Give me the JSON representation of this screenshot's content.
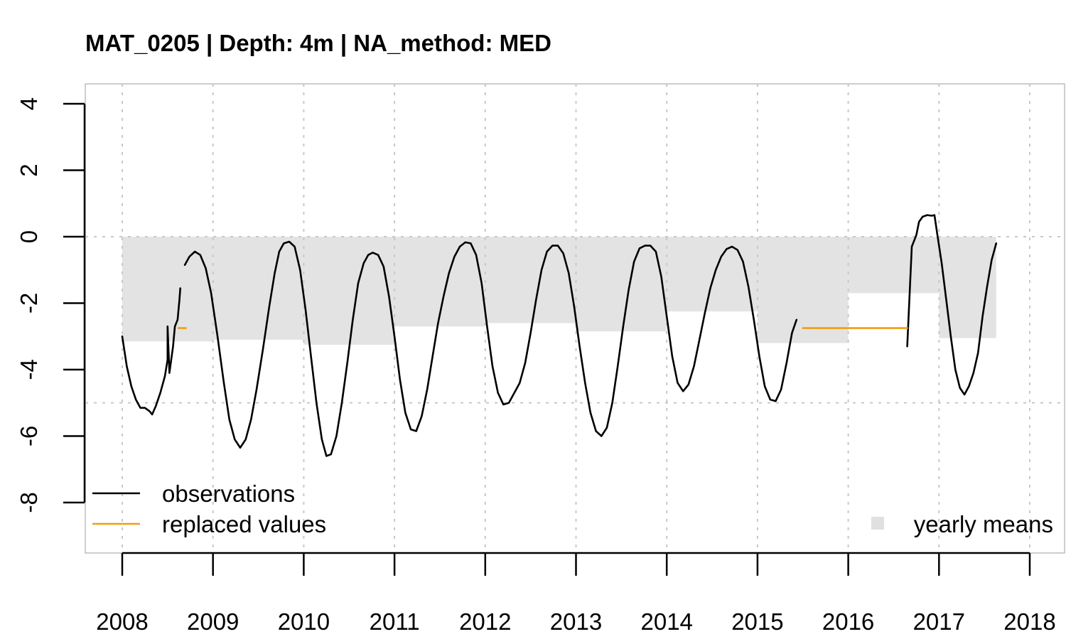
{
  "chart_data": {
    "type": "line",
    "title": "MAT_0205 | Depth: 4m | NA_method: MED",
    "xlabel": "",
    "ylabel": "",
    "xlim": [
      2007.6,
      2018.4
    ],
    "ylim": [
      -9.5,
      4.6
    ],
    "x_ticks": [
      2008,
      2009,
      2010,
      2011,
      2012,
      2013,
      2014,
      2015,
      2016,
      2017,
      2018
    ],
    "x_tick_labels": [
      "2008",
      "2009",
      "2010",
      "2011",
      "2012",
      "2013",
      "2014",
      "2015",
      "2016",
      "2017",
      "2018"
    ],
    "y_ticks": [
      4,
      2,
      0,
      -2,
      -4,
      -6,
      -8
    ],
    "y_tick_labels": [
      "4",
      "2",
      "0",
      "-2",
      "-4",
      "-6",
      "-8"
    ],
    "grid": true,
    "reference_lines_y": [
      0,
      -5
    ],
    "yearly_means": [
      {
        "start": 2008.0,
        "end": 2009.0,
        "value": -3.15
      },
      {
        "start": 2009.0,
        "end": 2010.0,
        "value": -3.1
      },
      {
        "start": 2010.0,
        "end": 2011.0,
        "value": -3.25
      },
      {
        "start": 2011.0,
        "end": 2012.0,
        "value": -2.7
      },
      {
        "start": 2012.0,
        "end": 2013.0,
        "value": -2.6
      },
      {
        "start": 2013.0,
        "end": 2014.0,
        "value": -2.85
      },
      {
        "start": 2014.0,
        "end": 2015.0,
        "value": -2.25
      },
      {
        "start": 2015.0,
        "end": 2016.0,
        "value": -3.2
      },
      {
        "start": 2016.0,
        "end": 2017.0,
        "value": -1.7
      },
      {
        "start": 2017.0,
        "end": 2017.63,
        "value": -3.05
      }
    ],
    "series": [
      {
        "name": "observations",
        "color": "#000000",
        "segments": [
          [
            [
              2008.0,
              -3.0
            ],
            [
              2008.05,
              -3.9
            ],
            [
              2008.1,
              -4.5
            ],
            [
              2008.15,
              -4.9
            ],
            [
              2008.2,
              -5.15
            ],
            [
              2008.25,
              -5.15
            ],
            [
              2008.3,
              -5.25
            ],
            [
              2008.33,
              -5.35
            ],
            [
              2008.37,
              -5.1
            ],
            [
              2008.42,
              -4.7
            ],
            [
              2008.47,
              -4.2
            ],
            [
              2008.5,
              -3.7
            ],
            [
              2008.5,
              -2.7
            ],
            [
              2008.52,
              -4.1
            ],
            [
              2008.56,
              -3.3
            ],
            [
              2008.58,
              -2.7
            ],
            [
              2008.61,
              -2.5
            ],
            [
              2008.63,
              -1.9
            ],
            [
              2008.64,
              -1.55
            ]
          ],
          [
            [
              2008.69,
              -0.85
            ],
            [
              2008.74,
              -0.6
            ],
            [
              2008.8,
              -0.45
            ],
            [
              2008.86,
              -0.55
            ],
            [
              2008.92,
              -0.95
            ],
            [
              2008.98,
              -1.7
            ],
            [
              2009.05,
              -3.0
            ],
            [
              2009.12,
              -4.4
            ],
            [
              2009.18,
              -5.5
            ],
            [
              2009.24,
              -6.1
            ],
            [
              2009.3,
              -6.35
            ],
            [
              2009.36,
              -6.1
            ],
            [
              2009.42,
              -5.5
            ],
            [
              2009.48,
              -4.6
            ],
            [
              2009.55,
              -3.4
            ],
            [
              2009.62,
              -2.1
            ],
            [
              2009.68,
              -1.1
            ],
            [
              2009.73,
              -0.45
            ],
            [
              2009.78,
              -0.2
            ],
            [
              2009.84,
              -0.15
            ],
            [
              2009.9,
              -0.3
            ],
            [
              2009.96,
              -1.0
            ],
            [
              2010.02,
              -2.2
            ],
            [
              2010.08,
              -3.6
            ],
            [
              2010.14,
              -5.0
            ],
            [
              2010.2,
              -6.1
            ],
            [
              2010.25,
              -6.6
            ],
            [
              2010.3,
              -6.55
            ],
            [
              2010.36,
              -6.0
            ],
            [
              2010.42,
              -5.0
            ],
            [
              2010.48,
              -3.8
            ],
            [
              2010.54,
              -2.5
            ],
            [
              2010.6,
              -1.4
            ],
            [
              2010.66,
              -0.8
            ],
            [
              2010.71,
              -0.55
            ],
            [
              2010.76,
              -0.48
            ],
            [
              2010.82,
              -0.55
            ],
            [
              2010.88,
              -0.9
            ],
            [
              2010.94,
              -1.8
            ],
            [
              2011.0,
              -3.0
            ],
            [
              2011.06,
              -4.3
            ],
            [
              2011.12,
              -5.3
            ],
            [
              2011.18,
              -5.8
            ],
            [
              2011.24,
              -5.85
            ],
            [
              2011.3,
              -5.4
            ],
            [
              2011.36,
              -4.6
            ],
            [
              2011.42,
              -3.6
            ],
            [
              2011.48,
              -2.6
            ],
            [
              2011.54,
              -1.8
            ],
            [
              2011.6,
              -1.1
            ],
            [
              2011.66,
              -0.6
            ],
            [
              2011.72,
              -0.3
            ],
            [
              2011.78,
              -0.17
            ],
            [
              2011.84,
              -0.2
            ],
            [
              2011.9,
              -0.55
            ],
            [
              2011.96,
              -1.4
            ],
            [
              2012.02,
              -2.7
            ],
            [
              2012.08,
              -3.9
            ],
            [
              2012.14,
              -4.7
            ],
            [
              2012.2,
              -5.05
            ],
            [
              2012.26,
              -5.0
            ],
            [
              2012.32,
              -4.7
            ],
            [
              2012.38,
              -4.4
            ],
            [
              2012.44,
              -3.8
            ],
            [
              2012.5,
              -2.9
            ],
            [
              2012.56,
              -1.9
            ],
            [
              2012.62,
              -1.0
            ],
            [
              2012.68,
              -0.45
            ],
            [
              2012.74,
              -0.27
            ],
            [
              2012.8,
              -0.27
            ],
            [
              2012.86,
              -0.5
            ],
            [
              2012.92,
              -1.1
            ],
            [
              2012.98,
              -2.1
            ],
            [
              2013.04,
              -3.3
            ],
            [
              2013.1,
              -4.4
            ],
            [
              2013.16,
              -5.3
            ],
            [
              2013.22,
              -5.85
            ],
            [
              2013.28,
              -6.0
            ],
            [
              2013.34,
              -5.75
            ],
            [
              2013.4,
              -5.0
            ],
            [
              2013.46,
              -3.9
            ],
            [
              2013.52,
              -2.7
            ],
            [
              2013.58,
              -1.6
            ],
            [
              2013.64,
              -0.75
            ],
            [
              2013.7,
              -0.35
            ],
            [
              2013.76,
              -0.27
            ],
            [
              2013.82,
              -0.27
            ],
            [
              2013.88,
              -0.45
            ],
            [
              2013.94,
              -1.2
            ],
            [
              2014.0,
              -2.4
            ],
            [
              2014.06,
              -3.6
            ],
            [
              2014.12,
              -4.4
            ],
            [
              2014.18,
              -4.65
            ],
            [
              2014.24,
              -4.45
            ],
            [
              2014.3,
              -3.9
            ],
            [
              2014.36,
              -3.1
            ],
            [
              2014.42,
              -2.3
            ],
            [
              2014.48,
              -1.55
            ],
            [
              2014.54,
              -1.0
            ],
            [
              2014.6,
              -0.6
            ],
            [
              2014.66,
              -0.37
            ],
            [
              2014.72,
              -0.3
            ],
            [
              2014.78,
              -0.4
            ],
            [
              2014.84,
              -0.75
            ],
            [
              2014.9,
              -1.5
            ],
            [
              2014.96,
              -2.5
            ],
            [
              2015.02,
              -3.6
            ],
            [
              2015.08,
              -4.5
            ],
            [
              2015.14,
              -4.9
            ],
            [
              2015.2,
              -4.95
            ],
            [
              2015.26,
              -4.6
            ],
            [
              2015.32,
              -3.8
            ],
            [
              2015.38,
              -2.9
            ],
            [
              2015.43,
              -2.5
            ]
          ],
          [
            [
              2016.65,
              -3.3
            ],
            [
              2016.7,
              -0.3
            ],
            [
              2016.75,
              0.05
            ],
            [
              2016.78,
              0.45
            ],
            [
              2016.82,
              0.6
            ],
            [
              2016.87,
              0.65
            ],
            [
              2016.92,
              0.63
            ],
            [
              2016.95,
              0.65
            ],
            [
              2016.98,
              0.1
            ],
            [
              2017.03,
              -0.8
            ],
            [
              2017.08,
              -1.9
            ],
            [
              2017.13,
              -3.0
            ],
            [
              2017.18,
              -4.0
            ],
            [
              2017.23,
              -4.55
            ],
            [
              2017.28,
              -4.75
            ],
            [
              2017.33,
              -4.5
            ],
            [
              2017.38,
              -4.1
            ],
            [
              2017.43,
              -3.5
            ],
            [
              2017.48,
              -2.4
            ],
            [
              2017.53,
              -1.5
            ],
            [
              2017.58,
              -0.7
            ],
            [
              2017.63,
              -0.2
            ]
          ]
        ]
      },
      {
        "name": "replaced values",
        "color": "#f39c12",
        "segments": [
          [
            [
              2008.62,
              -2.75
            ],
            [
              2008.7,
              -2.75
            ]
          ],
          [
            [
              2015.5,
              -2.75
            ],
            [
              2016.65,
              -2.75
            ]
          ]
        ]
      }
    ],
    "legend": {
      "placement": "bottom-left",
      "entries": [
        {
          "label": "observations",
          "color": "#000000",
          "kind": "line"
        },
        {
          "label": "replaced values",
          "color": "#f39c12",
          "kind": "line"
        }
      ],
      "secondary": {
        "placement": "bottom-right",
        "label": "yearly means",
        "color": "#e0e0e0",
        "kind": "square"
      }
    },
    "colors": {
      "mean_fill": "#e3e3e3",
      "grid": "#c8c8c8",
      "box": "#bdbdbd"
    }
  }
}
